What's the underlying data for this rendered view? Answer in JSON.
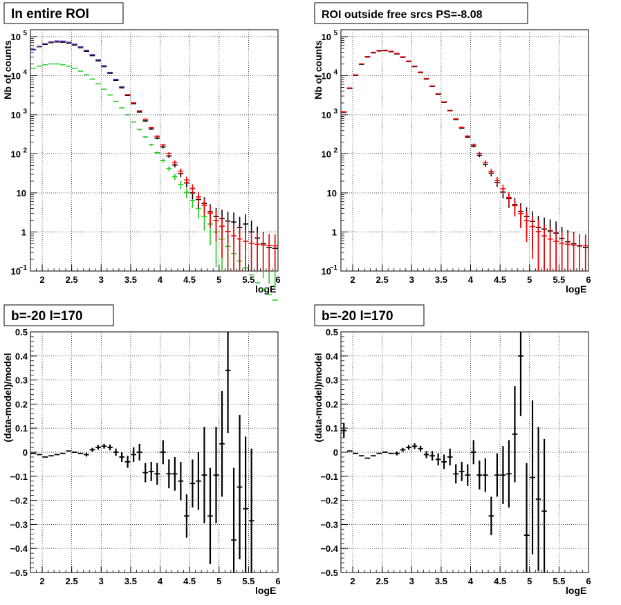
{
  "chart_data": [
    {
      "type": "scatter",
      "title": "In entire ROI",
      "xlabel": "logE",
      "ylabel": "Nb of counts",
      "log_y": true,
      "xlim": [
        1.8,
        6.0
      ],
      "ylim": [
        0.1,
        150000
      ],
      "grid": true,
      "x_ticks": [
        "2",
        "2.5",
        "3",
        "3.5",
        "4",
        "4.5",
        "5",
        "5.5",
        "6"
      ],
      "y_ticks": [
        {
          "value": 0.1,
          "base": "10",
          "exp": "−1"
        },
        {
          "value": 1,
          "base": "1",
          "exp": ""
        },
        {
          "value": 10,
          "base": "10",
          "exp": ""
        },
        {
          "value": 100,
          "base": "10",
          "exp": "2"
        },
        {
          "value": 1000,
          "base": "10",
          "exp": "3"
        },
        {
          "value": 10000,
          "base": "10",
          "exp": "4"
        },
        {
          "value": 100000,
          "base": "10",
          "exp": "5"
        }
      ],
      "series": [
        {
          "color": "#000000",
          "x": [
            1.85,
            1.95,
            2.05,
            2.15,
            2.25,
            2.35,
            2.45,
            2.55,
            2.65,
            2.75,
            2.85,
            2.95,
            3.05,
            3.15,
            3.25,
            3.35,
            3.45,
            3.55,
            3.65,
            3.75,
            3.85,
            3.95,
            4.05,
            4.15,
            4.25,
            4.35,
            4.45,
            4.55,
            4.65,
            4.75,
            4.85,
            4.95,
            5.05,
            5.15,
            5.25,
            5.35,
            5.45,
            5.55,
            5.65,
            5.75,
            5.85,
            5.95
          ],
          "y": [
            44000,
            53000,
            61000,
            68000,
            72000,
            73000,
            70000,
            64000,
            55000,
            45000,
            35000,
            26000,
            18500,
            12500,
            8200,
            5300,
            3350,
            2050,
            1260,
            765,
            460,
            275,
            165,
            99,
            59,
            35,
            21,
            12.5,
            7.2,
            4.8,
            3.3,
            2.3,
            1.7,
            1.2,
            1.3,
            1.3,
            0.9,
            0.9,
            0.8,
            0.8,
            0.7,
            0.6
          ],
          "y_disp": [
            44000,
            53000,
            61000,
            68000,
            72000,
            73000,
            70000,
            64000,
            55000,
            45000,
            35000,
            26000,
            18500,
            12500,
            8200,
            5300,
            3350,
            2050,
            1260,
            740,
            455,
            268,
            165,
            104,
            62,
            38,
            22.5,
            13.5,
            6.8,
            6.5,
            4.2,
            3.5,
            2.5,
            1.9,
            1.5,
            1.3,
            1.2,
            0.8,
            0.6,
            0.5,
            0.4,
            0.3
          ]
        }
      ]
    },
    {
      "type": "scatter",
      "title": "ROI outside free srcs PS=-8.08",
      "xlabel": "logE",
      "ylabel": "Nb of counts",
      "log_y": true,
      "xlim": [
        1.8,
        6.0
      ],
      "ylim": [
        0.1,
        150000
      ],
      "grid": true
    },
    {
      "type": "scatter",
      "title": "b=-20 l=170",
      "xlabel": "logE",
      "ylabel": "(data-model)/model",
      "xlim": [
        1.8,
        6.0
      ],
      "ylim": [
        -0.5,
        0.5
      ],
      "grid": true
    },
    {
      "type": "scatter",
      "title": "b=-20 l=170",
      "xlabel": "logE",
      "ylabel": "(data-model)/model",
      "xlim": [
        1.8,
        6.0
      ],
      "ylim": [
        -0.5,
        0.5
      ],
      "grid": true
    }
  ],
  "panels": {
    "top_left": {
      "title": "In entire ROI",
      "xlabel": "logE",
      "ylabel": "Nb of counts",
      "data": [
        {
          "color": "#000000",
          "x": [
            1.85,
            1.95,
            2.05,
            2.15,
            2.25,
            2.35,
            2.45,
            2.55,
            2.65,
            2.75,
            2.85,
            2.95,
            3.05,
            3.15,
            3.25,
            3.35,
            3.45,
            3.55,
            3.65,
            3.75,
            3.85,
            3.95,
            4.05,
            4.15,
            4.25,
            4.35,
            4.45,
            4.55,
            4.65,
            4.75,
            4.85,
            4.95,
            5.05,
            5.15,
            5.25,
            5.35,
            5.45,
            5.55,
            5.65,
            5.75,
            5.85,
            5.95
          ],
          "y": [
            46000,
            55000,
            63000,
            70000,
            73000,
            72000,
            68000,
            61000,
            52000,
            42000,
            32500,
            24000,
            17000,
            11500,
            7600,
            4900,
            3100,
            1920,
            1175,
            695,
            432,
            252,
            150,
            88,
            52,
            31,
            18,
            10,
            5.4,
            3.8,
            2.6,
            1.9,
            1.4,
            1.0,
            0.9,
            0.85,
            0.75,
            0.55,
            0.45,
            0.4,
            0.35,
            0.32
          ]
        }
      ]
    }
  }
}
